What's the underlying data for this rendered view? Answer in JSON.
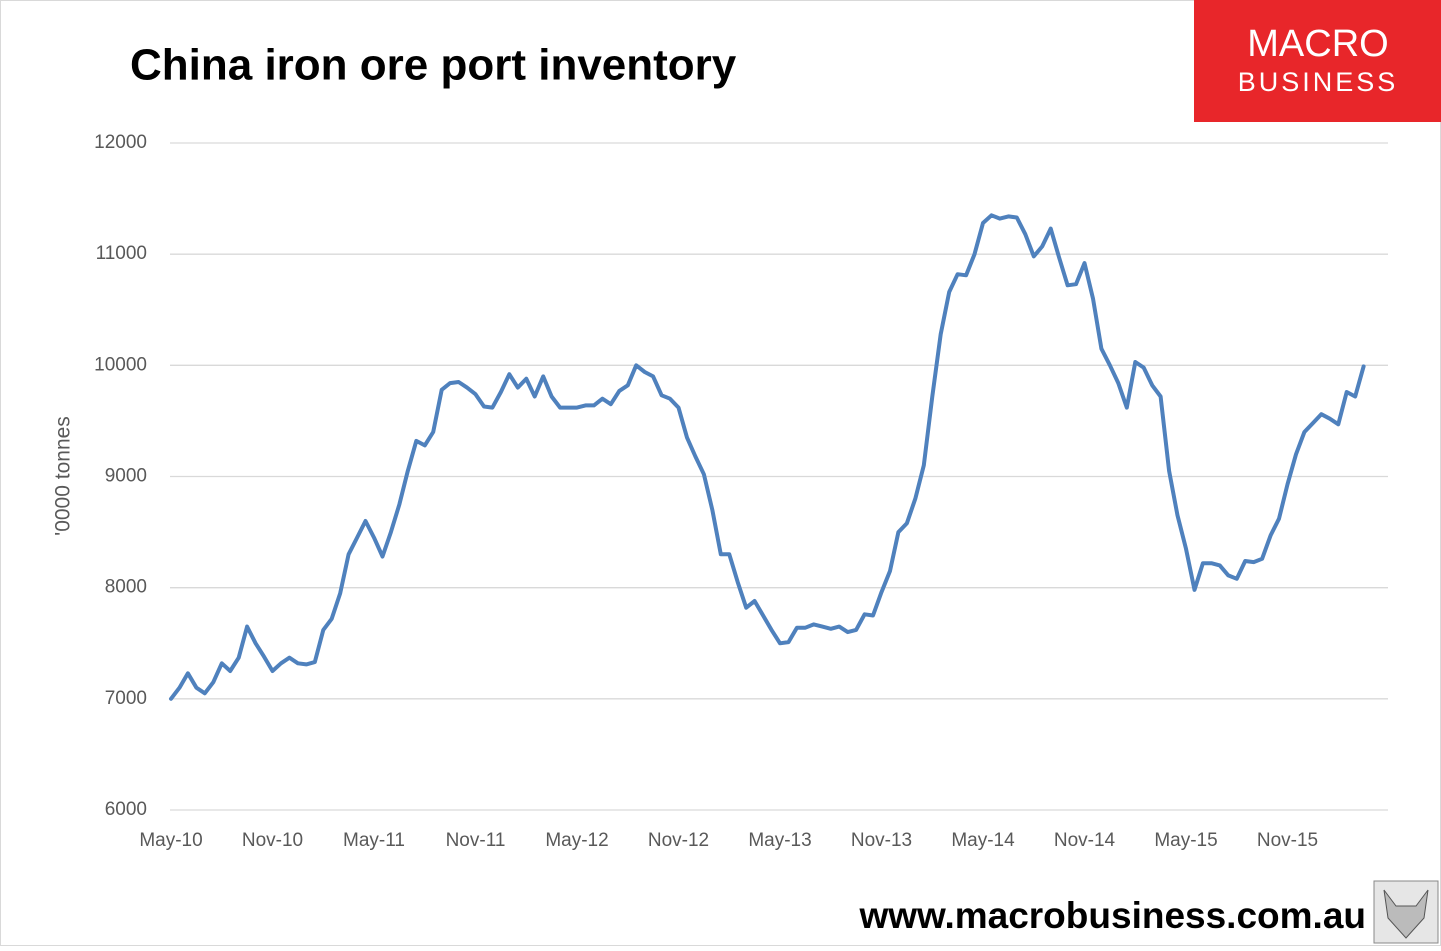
{
  "chart_data": {
    "type": "line",
    "title": "China iron ore port inventory",
    "y_label": "'0000 tonnes",
    "categories": [
      "May-10",
      null,
      null,
      null,
      null,
      null,
      null,
      null,
      null,
      null,
      null,
      null,
      "Nov-10",
      null,
      null,
      null,
      null,
      null,
      null,
      null,
      null,
      null,
      null,
      null,
      "May-11",
      null,
      null,
      null,
      null,
      null,
      null,
      null,
      null,
      null,
      null,
      null,
      "Nov-11",
      null,
      null,
      null,
      null,
      null,
      null,
      null,
      null,
      null,
      null,
      null,
      "May-12",
      null,
      null,
      null,
      null,
      null,
      null,
      null,
      null,
      null,
      null,
      null,
      "Nov-12",
      null,
      null,
      null,
      null,
      null,
      null,
      null,
      null,
      null,
      null,
      null,
      "May-13",
      null,
      null,
      null,
      null,
      null,
      null,
      null,
      null,
      null,
      null,
      null,
      "Nov-13",
      null,
      null,
      null,
      null,
      null,
      null,
      null,
      null,
      null,
      null,
      null,
      "May-14",
      null,
      null,
      null,
      null,
      null,
      null,
      null,
      null,
      null,
      null,
      null,
      "Nov-14",
      null,
      null,
      null,
      null,
      null,
      null,
      null,
      null,
      null,
      null,
      null,
      "May-15",
      null,
      null,
      null,
      null,
      null,
      null,
      null,
      null,
      null,
      null,
      null,
      "Nov-15",
      null,
      null,
      null,
      null,
      null,
      null,
      null,
      null,
      null
    ],
    "series": [
      {
        "name": "China iron ore port inventory",
        "color": "#4f81bd",
        "values": [
          7000,
          7100,
          7230,
          7100,
          7050,
          7150,
          7320,
          7250,
          7370,
          7650,
          7500,
          7380,
          7250,
          7320,
          7370,
          7320,
          7310,
          7330,
          7620,
          7720,
          7950,
          8300,
          8450,
          8600,
          8450,
          8280,
          8500,
          8750,
          9050,
          9320,
          9280,
          9400,
          9780,
          9840,
          9850,
          9800,
          9740,
          9630,
          9620,
          9760,
          9920,
          9800,
          9880,
          9720,
          9900,
          9720,
          9620,
          9620,
          9620,
          9640,
          9640,
          9700,
          9650,
          9770,
          9820,
          10000,
          9940,
          9900,
          9730,
          9700,
          9620,
          9350,
          9180,
          9020,
          8700,
          8300,
          8300,
          8050,
          7820,
          7880,
          7750,
          7620,
          7500,
          7510,
          7640,
          7640,
          7670,
          7650,
          7630,
          7650,
          7600,
          7620,
          7760,
          7750,
          7960,
          8150,
          8500,
          8580,
          8800,
          9100,
          9720,
          10280,
          10660,
          10820,
          10810,
          11000,
          11280,
          11350,
          11320,
          11340,
          11330,
          11180,
          10980,
          11070,
          11230,
          10970,
          10720,
          10730,
          10920,
          10600,
          10150,
          10000,
          9840,
          9620,
          10030,
          9980,
          9820,
          9720,
          9050,
          8650,
          8350,
          7980,
          8220,
          8220,
          8200,
          8110,
          8080,
          8240,
          8230,
          8260,
          8470,
          8620,
          8930,
          9200,
          9400,
          9480,
          9560,
          9520,
          9470,
          9760,
          9720,
          9990
        ]
      }
    ],
    "ylim": [
      6000,
      12000
    ],
    "yticks": [
      6000,
      7000,
      8000,
      9000,
      10000,
      11000,
      12000
    ],
    "grid": true
  },
  "logo": {
    "line1": "MACRO",
    "line2": "BUSINESS"
  },
  "footer": "www.macrobusiness.com.au"
}
